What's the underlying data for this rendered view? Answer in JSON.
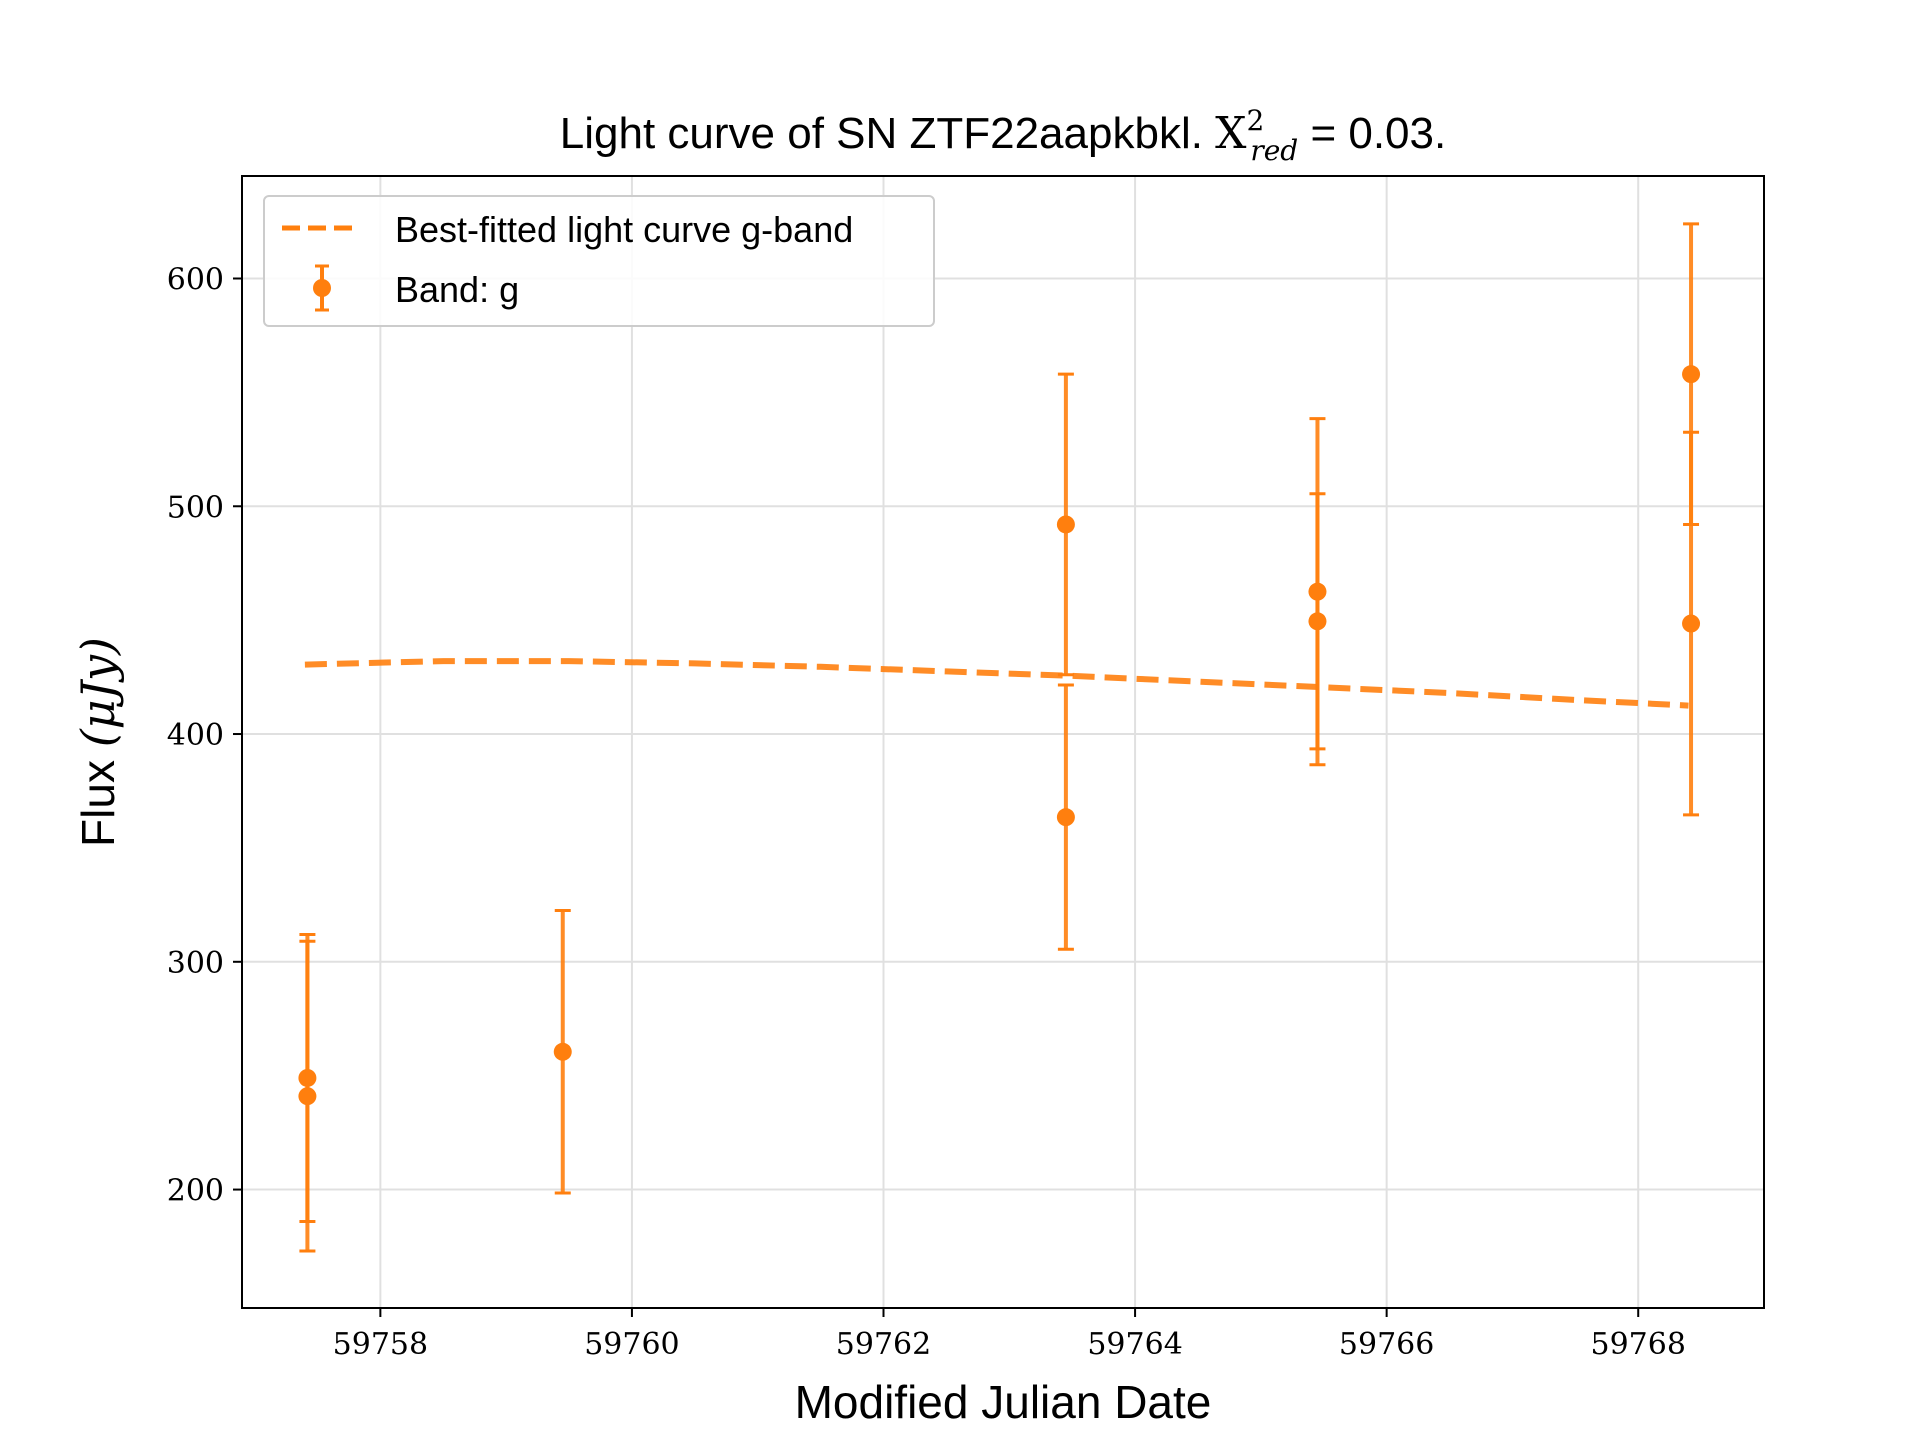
{
  "chart_data": {
    "type": "scatter",
    "title": {
      "prefix": "Light curve of SN ZTF22aapkbkl. ",
      "chi_symbol": "X",
      "chi_sup": "2",
      "chi_sub": "red",
      "suffix": " = 0.03."
    },
    "xlabel": "Modified Julian Date",
    "ylabel": {
      "text": "Flux ",
      "unit": "(μJy)"
    },
    "xlim": [
      59756.9,
      59769.0
    ],
    "ylim": [
      148,
      645
    ],
    "x_ticks": [
      59758,
      59760,
      59762,
      59764,
      59766,
      59768
    ],
    "y_ticks": [
      200,
      300,
      400,
      500,
      600
    ],
    "grid": true,
    "legend_position": "upper-left",
    "colors": {
      "series": "#ff7f0e",
      "grid": "#e0e0e0",
      "axes": "#000000",
      "legend_border": "#cccccc"
    },
    "series": [
      {
        "name": "Best-fitted light curve g-band",
        "kind": "line",
        "style": "dashed",
        "x": [
          59757.4,
          59758.5,
          59759.5,
          59760.5,
          59761.5,
          59762.5,
          59763.5,
          59764.5,
          59765.5,
          59766.5,
          59767.5,
          59768.4
        ],
        "y": [
          430.5,
          432,
          432,
          431,
          429.5,
          427.5,
          425.5,
          423,
          420.5,
          418,
          415,
          412.5
        ]
      },
      {
        "name": "Band: g",
        "kind": "errorbar",
        "x": [
          59757.42,
          59757.42,
          59759.45,
          59763.45,
          59763.45,
          59765.45,
          59765.45,
          59768.42,
          59768.42
        ],
        "y": [
          249,
          241,
          260.5,
          492,
          363.5,
          462.5,
          449.5,
          558,
          448.5
        ],
        "yerr": [
          63,
          68,
          62,
          66,
          58,
          76,
          56,
          66,
          84
        ]
      }
    ]
  }
}
